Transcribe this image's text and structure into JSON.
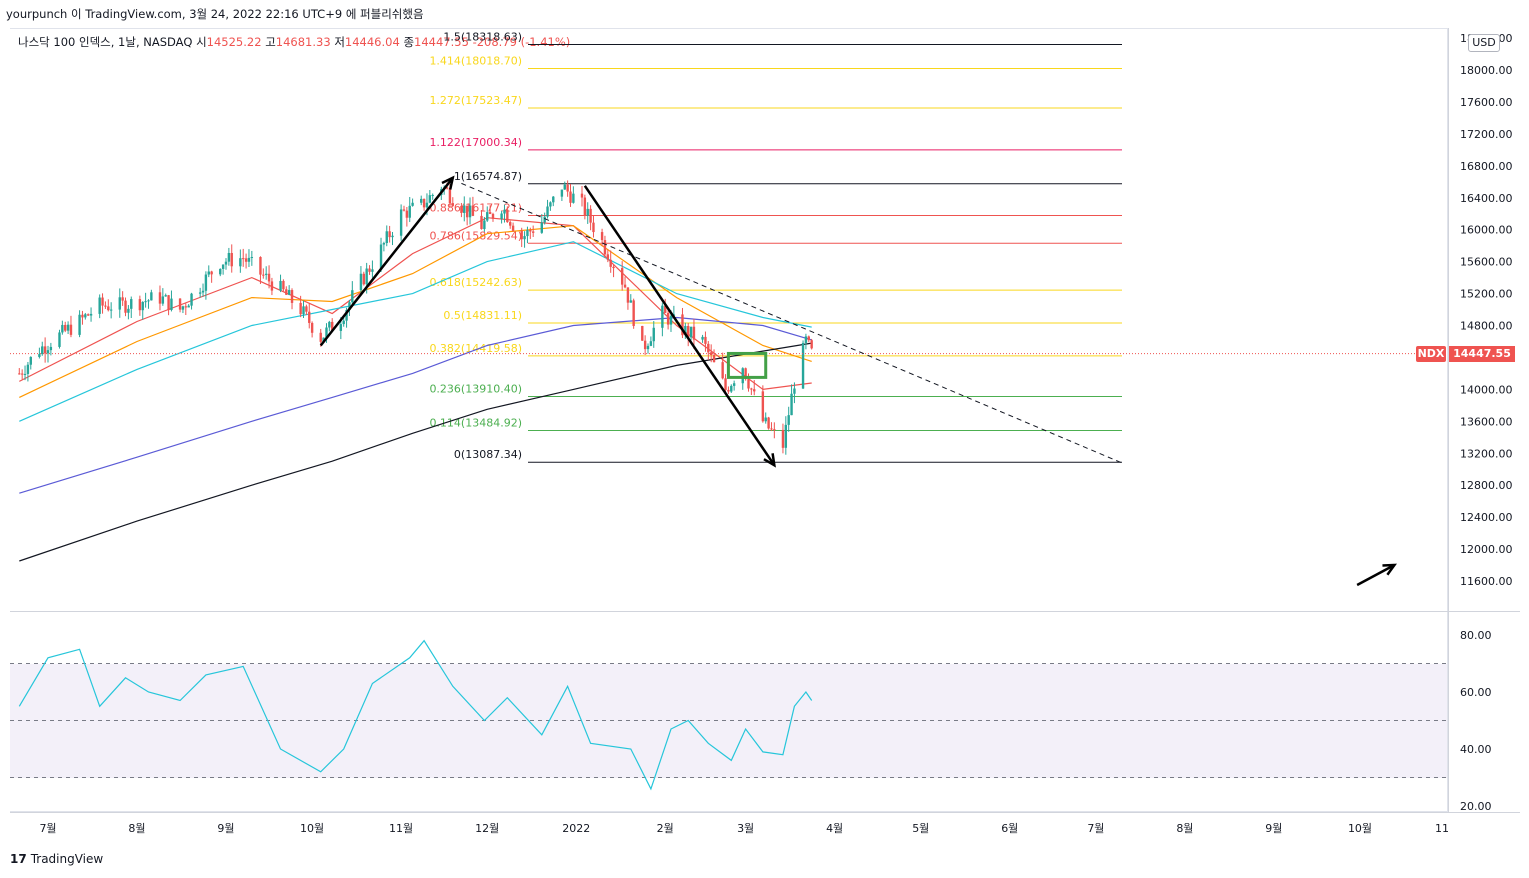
{
  "header": {
    "text": "yourpunch 이 TradingView.com, 3월 24, 2022 22:16 UTC+9 에 퍼블리쉬했음"
  },
  "legend": {
    "symbol": "나스닥 100 인덱스, 1날, NASDAQ",
    "open_label": "시",
    "open": "14525.22",
    "high_label": "고",
    "high": "14681.33",
    "low_label": "저",
    "low": "14446.04",
    "close_label": "종",
    "close": "14447.55",
    "change": "-208.79",
    "change_pct": "(-1.41%)"
  },
  "price_axis": {
    "currency_button": "USD",
    "ticks": [
      "18400.00",
      "18000.00",
      "17600.00",
      "17200.00",
      "16800.00",
      "16400.00",
      "16000.00",
      "15600.00",
      "15200.00",
      "14800.00",
      "14400.00",
      "14000.00",
      "13600.00",
      "13200.00",
      "12800.00",
      "12400.00",
      "12000.00",
      "11600.00"
    ],
    "last_symbol": "NDX",
    "last_price": "14447.55"
  },
  "rsi_axis": {
    "ticks": [
      "80.00",
      "60.00",
      "40.00",
      "20.00"
    ]
  },
  "time_axis": {
    "ticks": [
      "7월",
      "8월",
      "9월",
      "10월",
      "11월",
      "12월",
      "2022",
      "2월",
      "3월",
      "4월",
      "5월",
      "6월",
      "7월",
      "8월",
      "9월",
      "10월",
      "11"
    ]
  },
  "fib_levels": [
    {
      "label": "1.5(18318.63)",
      "color": "#131722"
    },
    {
      "label": "1.414(18018.70)",
      "color": "#f9d71c"
    },
    {
      "label": "1.272(17523.47)",
      "color": "#f9d71c"
    },
    {
      "label": "1.122(17000.34)",
      "color": "#e91e63"
    },
    {
      "label": "1(16574.87)",
      "color": "#131722"
    },
    {
      "label": "0.886(16177.21)",
      "color": "#ef5350"
    },
    {
      "label": "0.786(15829.54)",
      "color": "#ef5350"
    },
    {
      "label": "0.618(15242.63)",
      "color": "#f9d71c"
    },
    {
      "label": "0.5(14831.11)",
      "color": "#f9d71c"
    },
    {
      "label": "0.382(14419.58)",
      "color": "#f9d71c"
    },
    {
      "label": "0.236(13910.40)",
      "color": "#4caf50"
    },
    {
      "label": "0.114(13484.92)",
      "color": "#4caf50"
    },
    {
      "label": "0(13087.34)",
      "color": "#131722"
    }
  ],
  "chart_data": {
    "type": "candlestick",
    "title": "나스닥 100 인덱스, 1날, NASDAQ",
    "y_range": [
      11300,
      18500
    ],
    "rsi_range": [
      15,
      88
    ],
    "rsi_bands": [
      70,
      50,
      30
    ],
    "fib_values": [
      18318.63,
      18018.7,
      17523.47,
      17000.34,
      16574.87,
      16177.21,
      15829.54,
      15242.63,
      14831.11,
      14419.58,
      13910.4,
      13484.92,
      13087.34
    ],
    "close_path": [
      [
        "2021-06-21",
        14200
      ],
      [
        "2021-06-28",
        14500
      ],
      [
        "2021-07-06",
        14700
      ],
      [
        "2021-07-12",
        14850
      ],
      [
        "2021-07-19",
        15050
      ],
      [
        "2021-07-26",
        15050
      ],
      [
        "2021-08-02",
        15100
      ],
      [
        "2021-08-09",
        15150
      ],
      [
        "2021-08-16",
        15000
      ],
      [
        "2021-08-23",
        15300
      ],
      [
        "2021-08-30",
        15600
      ],
      [
        "2021-09-07",
        15650
      ],
      [
        "2021-09-13",
        15450
      ],
      [
        "2021-09-20",
        15250
      ],
      [
        "2021-09-27",
        15000
      ],
      [
        "2021-10-04",
        14650
      ],
      [
        "2021-10-11",
        14900
      ],
      [
        "2021-10-18",
        15350
      ],
      [
        "2021-10-25",
        15750
      ],
      [
        "2021-11-01",
        16200
      ],
      [
        "2021-11-08",
        16300
      ],
      [
        "2021-11-15",
        16550
      ],
      [
        "2021-11-22",
        16300
      ],
      [
        "2021-11-29",
        16050
      ],
      [
        "2021-12-06",
        16300
      ],
      [
        "2021-12-13",
        15900
      ],
      [
        "2021-12-20",
        16100
      ],
      [
        "2021-12-27",
        16550
      ],
      [
        "2022-01-03",
        16300
      ],
      [
        "2022-01-10",
        15850
      ],
      [
        "2022-01-18",
        15300
      ],
      [
        "2022-01-24",
        14500
      ],
      [
        "2022-01-31",
        14950
      ],
      [
        "2022-02-07",
        14750
      ],
      [
        "2022-02-14",
        14600
      ],
      [
        "2022-02-22",
        14000
      ],
      [
        "2022-02-28",
        14300
      ],
      [
        "2022-03-07",
        13600
      ],
      [
        "2022-03-14",
        13300
      ],
      [
        "2022-03-18",
        14100
      ],
      [
        "2022-03-22",
        14600
      ],
      [
        "2022-03-24",
        14447.55
      ]
    ],
    "moving_averages": [
      {
        "color": "#ef5350",
        "values": [
          [
            "2021-06-21",
            14100
          ],
          [
            "2021-08-01",
            14850
          ],
          [
            "2021-09-10",
            15400
          ],
          [
            "2021-10-08",
            14950
          ],
          [
            "2021-11-05",
            15700
          ],
          [
            "2021-12-01",
            16150
          ],
          [
            "2021-12-31",
            16050
          ],
          [
            "2022-02-05",
            14800
          ],
          [
            "2022-03-07",
            14000
          ],
          [
            "2022-03-24",
            14080
          ]
        ]
      },
      {
        "color": "#ff9800",
        "values": [
          [
            "2021-06-21",
            13900
          ],
          [
            "2021-08-01",
            14600
          ],
          [
            "2021-09-10",
            15150
          ],
          [
            "2021-10-08",
            15100
          ],
          [
            "2021-11-05",
            15450
          ],
          [
            "2021-12-01",
            15950
          ],
          [
            "2021-12-31",
            16050
          ],
          [
            "2022-02-05",
            15150
          ],
          [
            "2022-03-07",
            14550
          ],
          [
            "2022-03-24",
            14350
          ]
        ]
      },
      {
        "color": "#26c6da",
        "values": [
          [
            "2021-06-21",
            13600
          ],
          [
            "2021-08-01",
            14250
          ],
          [
            "2021-09-10",
            14800
          ],
          [
            "2021-10-08",
            15000
          ],
          [
            "2021-11-05",
            15200
          ],
          [
            "2021-12-01",
            15600
          ],
          [
            "2021-12-31",
            15850
          ],
          [
            "2022-02-05",
            15200
          ],
          [
            "2022-03-07",
            14900
          ],
          [
            "2022-03-24",
            14780
          ]
        ]
      },
      {
        "color": "#5b5bd6",
        "values": [
          [
            "2021-06-21",
            12700
          ],
          [
            "2021-08-01",
            13150
          ],
          [
            "2021-09-10",
            13600
          ],
          [
            "2021-10-08",
            13900
          ],
          [
            "2021-11-05",
            14200
          ],
          [
            "2021-12-01",
            14550
          ],
          [
            "2021-12-31",
            14800
          ],
          [
            "2022-02-05",
            14900
          ],
          [
            "2022-03-07",
            14800
          ],
          [
            "2022-03-24",
            14620
          ]
        ]
      },
      {
        "color": "#131722",
        "values": [
          [
            "2021-06-21",
            11850
          ],
          [
            "2021-08-01",
            12350
          ],
          [
            "2021-09-10",
            12800
          ],
          [
            "2021-10-08",
            13100
          ],
          [
            "2021-11-05",
            13450
          ],
          [
            "2021-12-01",
            13750
          ],
          [
            "2021-12-31",
            14000
          ],
          [
            "2022-02-05",
            14300
          ],
          [
            "2022-03-07",
            14480
          ],
          [
            "2022-03-24",
            14580
          ]
        ]
      }
    ],
    "rsi": [
      [
        "2021-06-21",
        55
      ],
      [
        "2021-07-01",
        72
      ],
      [
        "2021-07-12",
        75
      ],
      [
        "2021-07-19",
        55
      ],
      [
        "2021-07-28",
        65
      ],
      [
        "2021-08-05",
        60
      ],
      [
        "2021-08-16",
        57
      ],
      [
        "2021-08-25",
        66
      ],
      [
        "2021-09-07",
        69
      ],
      [
        "2021-09-20",
        40
      ],
      [
        "2021-10-04",
        32
      ],
      [
        "2021-10-12",
        40
      ],
      [
        "2021-10-22",
        63
      ],
      [
        "2021-11-04",
        72
      ],
      [
        "2021-11-09",
        78
      ],
      [
        "2021-11-19",
        62
      ],
      [
        "2021-11-30",
        50
      ],
      [
        "2021-12-08",
        58
      ],
      [
        "2021-12-20",
        45
      ],
      [
        "2021-12-29",
        62
      ],
      [
        "2022-01-06",
        42
      ],
      [
        "2022-01-20",
        40
      ],
      [
        "2022-01-27",
        26
      ],
      [
        "2022-02-03",
        47
      ],
      [
        "2022-02-09",
        50
      ],
      [
        "2022-02-16",
        42
      ],
      [
        "2022-02-24",
        36
      ],
      [
        "2022-03-01",
        47
      ],
      [
        "2022-03-07",
        39
      ],
      [
        "2022-03-14",
        38
      ],
      [
        "2022-03-18",
        55
      ],
      [
        "2022-03-22",
        60
      ],
      [
        "2022-03-24",
        57
      ]
    ],
    "drawings": {
      "impulse_up": [
        [
          "2021-10-04",
          14550
        ],
        [
          "2021-11-19",
          16650
        ]
      ],
      "impulse_down": [
        [
          "2022-01-04",
          16550
        ],
        [
          "2022-03-11",
          13050
        ]
      ],
      "trendline": [
        [
          "2021-11-22",
          16580
        ],
        [
          "2022-07-10",
          13080
        ]
      ],
      "highlight_box": {
        "from": [
          "2022-02-23",
          14450
        ],
        "to": [
          "2022-03-08",
          14150
        ]
      },
      "forecast_arrow": [
        [
          "2022-09-30",
          11550
        ],
        [
          "2022-10-13",
          11800
        ]
      ]
    }
  }
}
